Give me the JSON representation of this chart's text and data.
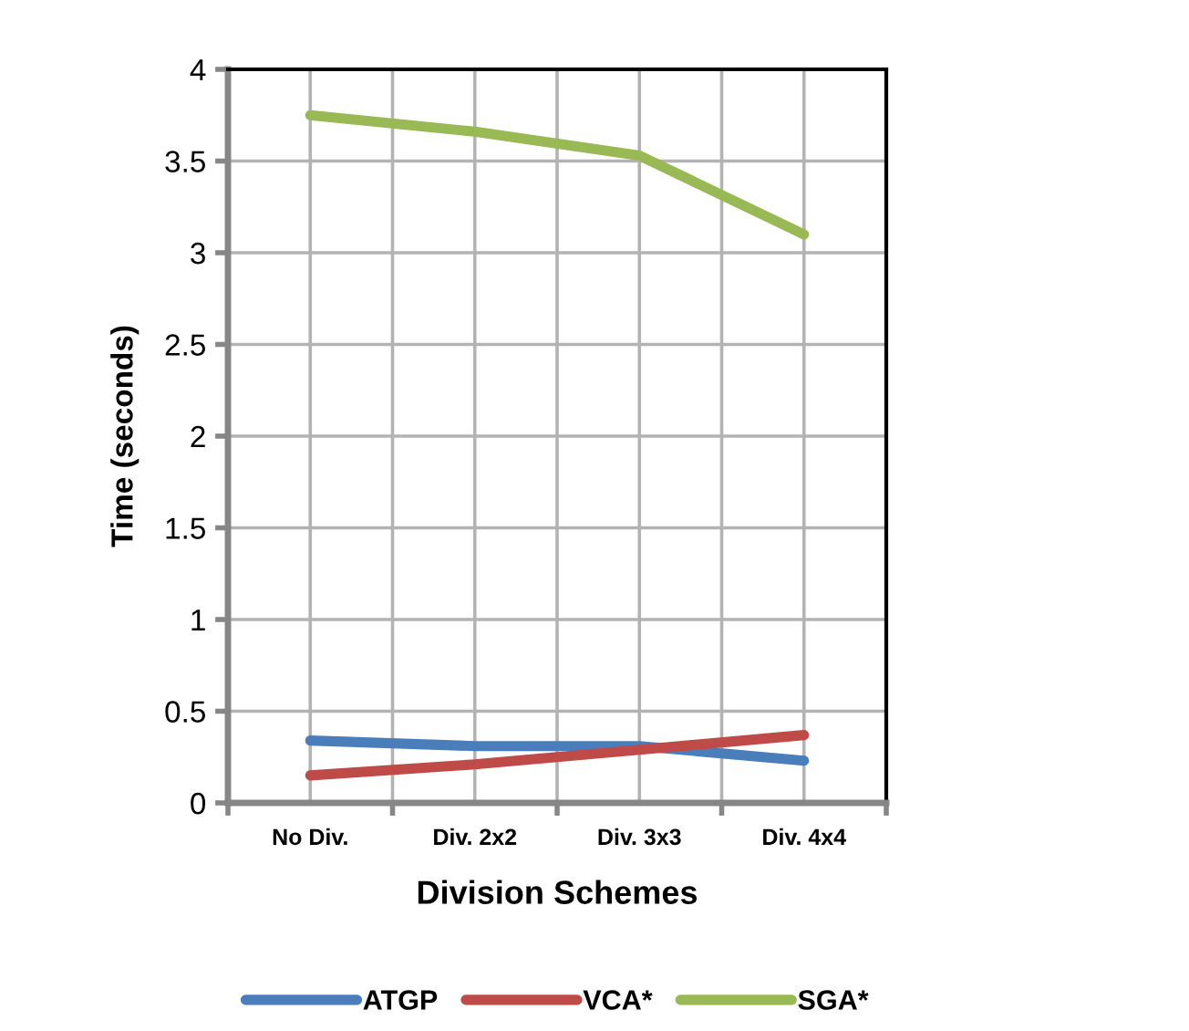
{
  "chart_data": {
    "type": "line",
    "xlabel": "Division Schemes",
    "ylabel": "Time (seconds)",
    "categories": [
      "No Div.",
      "Div. 2x2",
      "Div. 3x3",
      "Div. 4x4"
    ],
    "series": [
      {
        "name": "ATGP",
        "color": "#4a7ebb",
        "values": [
          0.34,
          0.31,
          0.31,
          0.23
        ]
      },
      {
        "name": "VCA*",
        "color": "#be4b48",
        "values": [
          0.15,
          0.21,
          0.29,
          0.37
        ]
      },
      {
        "name": "SGA*",
        "color": "#98b954",
        "values": [
          3.75,
          3.66,
          3.53,
          3.1
        ]
      }
    ],
    "ylim": [
      0,
      4
    ],
    "yticks": [
      0,
      0.5,
      1,
      1.5,
      2,
      2.5,
      3,
      3.5,
      4
    ],
    "grid": true,
    "legend": "bottom",
    "marker": "none",
    "line_style": "solid"
  }
}
